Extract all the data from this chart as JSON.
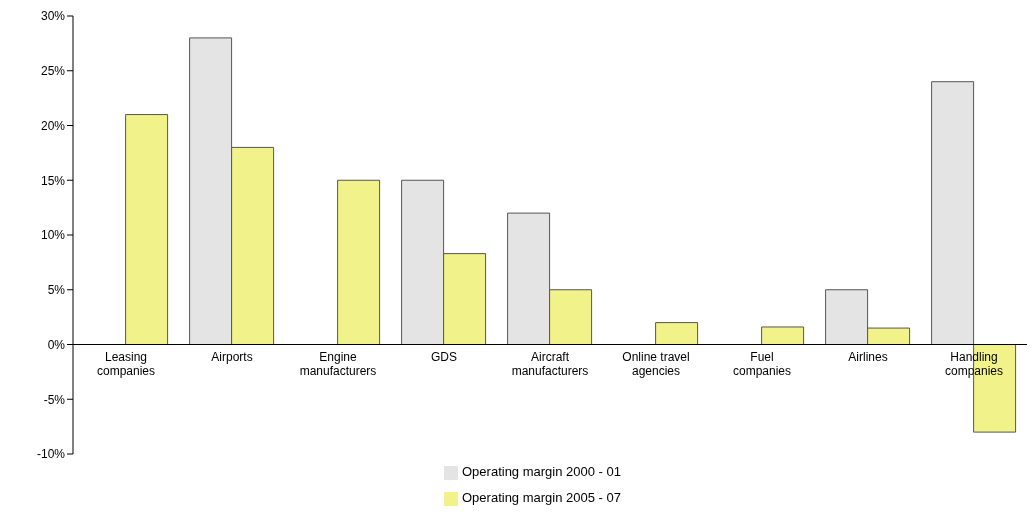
{
  "chart_data": {
    "type": "bar",
    "categories": [
      "Leasing companies",
      "Airports",
      "Engine manufacturers",
      "GDS",
      "Aircraft manufacturers",
      "Online travel agencies",
      "Fuel companies",
      "Airlines",
      "Handling companies"
    ],
    "series": [
      {
        "name": "Operating margin 2000 - 01",
        "color": "#e4e4e4",
        "values": [
          null,
          28,
          null,
          15,
          12,
          null,
          null,
          5,
          24
        ]
      },
      {
        "name": "Operating margin 2005 - 07",
        "color": "#f2f28a",
        "values": [
          21,
          18,
          15,
          8.3,
          5,
          2,
          1.6,
          1.5,
          -8
        ]
      }
    ],
    "ylim": [
      -10,
      30
    ],
    "yticks": [
      {
        "value": -10,
        "label": "-10%"
      },
      {
        "value": -5,
        "label": "-5%"
      },
      {
        "value": 0,
        "label": "0%"
      },
      {
        "value": 5,
        "label": "5%"
      },
      {
        "value": 10,
        "label": "10%"
      },
      {
        "value": 15,
        "label": "15%"
      },
      {
        "value": 20,
        "label": "20%"
      },
      {
        "value": 25,
        "label": "25%"
      },
      {
        "value": 30,
        "label": "30%"
      }
    ],
    "grid": false,
    "legend": "bottom"
  }
}
